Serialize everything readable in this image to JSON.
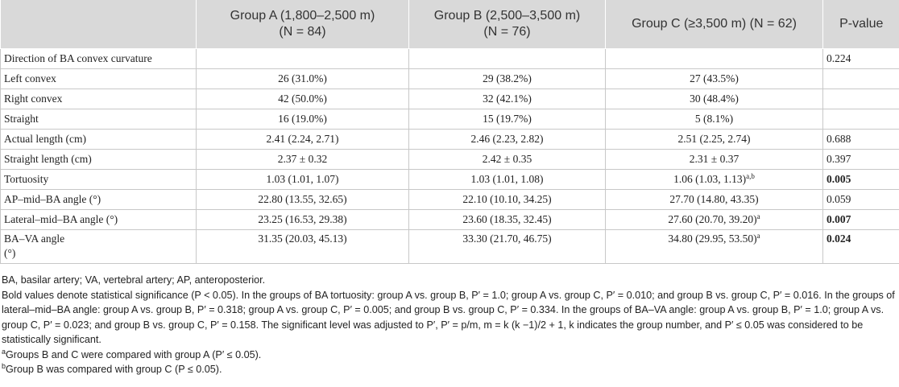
{
  "table": {
    "headers": [
      {
        "line1": "",
        "line2": ""
      },
      {
        "line1": "Group A (1,800–2,500 m)",
        "line2": "(N = 84)"
      },
      {
        "line1": "Group B (2,500–3,500 m)",
        "line2": "(N = 76)"
      },
      {
        "line1": "Group C (≥3,500 m) (N = 62)",
        "line2": ""
      },
      {
        "line1": "P-value",
        "line2": ""
      }
    ],
    "rows": [
      {
        "label": "Direction of BA convex curvature",
        "a": "",
        "b": "",
        "c": "",
        "c_sup": "",
        "p": "0.224"
      },
      {
        "label": "Left convex",
        "a": "26 (31.0%)",
        "b": "29 (38.2%)",
        "c": "27 (43.5%)",
        "c_sup": "",
        "p": ""
      },
      {
        "label": "Right convex",
        "a": "42 (50.0%)",
        "b": "32 (42.1%)",
        "c": "30 (48.4%)",
        "c_sup": "",
        "p": ""
      },
      {
        "label": "Straight",
        "a": "16 (19.0%)",
        "b": "15 (19.7%)",
        "c": "5 (8.1%)",
        "c_sup": "",
        "p": ""
      },
      {
        "label": "Actual length (cm)",
        "a": "2.41 (2.24, 2.71)",
        "b": "2.46 (2.23, 2.82)",
        "c": "2.51 (2.25, 2.74)",
        "c_sup": "",
        "p": "0.688"
      },
      {
        "label": "Straight length (cm)",
        "a": "2.37 ± 0.32",
        "b": "2.42 ± 0.35",
        "c": "2.31 ± 0.37",
        "c_sup": "",
        "p": "0.397"
      },
      {
        "label": "Tortuosity",
        "a": "1.03 (1.01, 1.07)",
        "b": "1.03 (1.01, 1.08)",
        "c": "1.06 (1.03, 1.13)",
        "c_sup": "a,b",
        "p": "0.005"
      },
      {
        "label": "AP–mid–BA angle (°)",
        "a": "22.80 (13.55, 32.65)",
        "b": "22.10 (10.10, 34.25)",
        "c": "27.70 (14.80, 43.35)",
        "c_sup": "",
        "p": "0.059"
      },
      {
        "label": "Lateral–mid–BA angle (°)",
        "a": "23.25 (16.53, 29.38)",
        "b": "23.60 (18.35, 32.45)",
        "c": "27.60 (20.70, 39.20)",
        "c_sup": "a",
        "p": "0.007"
      },
      {
        "label": "BA–VA angle (°)",
        "a": "31.35 (20.03, 45.13)",
        "b": "33.30 (21.70, 46.75)",
        "c": "34.80 (29.95, 53.50)",
        "c_sup": "a",
        "p": "0.024"
      }
    ]
  },
  "footnotes": {
    "abbrev": "BA, basilar artery; VA, vertebral artery; AP, anteroposterior.",
    "bold_note": "Bold values denote statistical significance (P < 0.05). In the groups of BA tortuosity: group A vs. group B, P′ = 1.0; group A vs. group C, P′ = 0.010; and group B vs. group C, P′ = 0.016. In the groups of lateral–mid–BA angle: group A vs. group B, P′ = 0.318; group A vs. group C, P′ = 0.005; and group B vs. group C, P′ = 0.334. In the groups of BA–VA angle: group A vs. group B, P′ = 1.0; group A vs. group C, P′ = 0.023; and group B vs. group C, P′ = 0.158. The significant level was adjusted to P′, P′ = p/m, m = k (k −1)/2 + 1, k indicates the group number, and P′ ≤ 0.05 was considered to be statistically significant.",
    "note_a_mark": "a",
    "note_a": "Groups B and C were compared with group A (P′ ≤ 0.05).",
    "note_b_mark": "b",
    "note_b": "Group B was compared with group C (P ≤ 0.05)."
  }
}
